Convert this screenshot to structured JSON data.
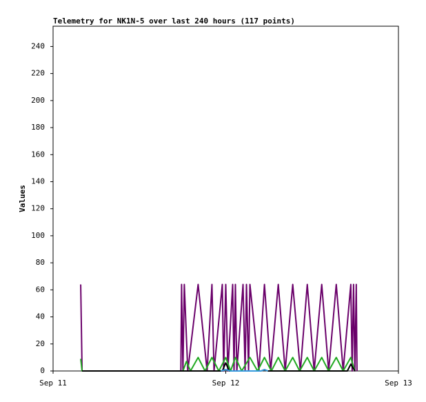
{
  "chart_data": {
    "type": "line",
    "title": "Telemetry for NK1N-5 over last 240 hours (117 points)",
    "ylabel": "Values",
    "xlim": [
      0,
      48
    ],
    "xticks": [
      {
        "value": 0,
        "label": "Sep 11"
      },
      {
        "value": 24,
        "label": "Sep 12"
      },
      {
        "value": 48,
        "label": "Sep 13"
      }
    ],
    "ylim": [
      0,
      255
    ],
    "yticks": [
      0,
      20,
      40,
      60,
      80,
      100,
      120,
      140,
      160,
      180,
      200,
      220,
      240
    ],
    "grid": false,
    "series": [
      {
        "color": "#6a006a",
        "x": [
          3.84,
          4.03,
          17.76,
          17.86,
          18.05,
          18.24,
          18.72,
          20.16,
          21.41,
          22.08,
          22.37,
          23.52,
          23.71,
          24.0,
          24.29,
          24.96,
          25.15,
          25.34,
          25.54,
          26.4,
          26.69,
          26.88,
          27.17,
          27.36,
          28.61,
          29.38,
          30.24,
          31.3,
          32.26,
          33.31,
          34.37,
          35.33,
          36.29,
          37.34,
          38.3,
          39.36,
          40.32,
          41.38,
          41.57,
          41.76,
          41.95,
          42.14,
          42.24
        ],
        "values": [
          64,
          0,
          0,
          64,
          0,
          64,
          0,
          64,
          0,
          64,
          0,
          64,
          0,
          64,
          0,
          64,
          0,
          64,
          0,
          64,
          0,
          64,
          0,
          64,
          0,
          64,
          0,
          64,
          0,
          64,
          0,
          64,
          0,
          64,
          0,
          64,
          0,
          64,
          0,
          64,
          0,
          64,
          0
        ]
      },
      {
        "color": "#22aa22",
        "x": [
          3.84,
          4.03,
          18.05,
          18.53,
          19.1,
          20.16,
          21.12,
          22.08,
          23.04,
          24.0,
          24.67,
          25.34,
          26.21,
          27.36,
          28.42,
          29.38,
          30.34,
          31.3,
          32.26,
          33.31,
          34.27,
          35.33,
          36.29,
          37.34,
          38.3,
          39.36,
          40.32,
          41.38,
          41.95
        ],
        "values": [
          9,
          0,
          0,
          7,
          0,
          10,
          0,
          10,
          0,
          10,
          0,
          10,
          0,
          10,
          0,
          10,
          0,
          10,
          0,
          10,
          0,
          10,
          0,
          10,
          0,
          10,
          0,
          10,
          0
        ]
      },
      {
        "color": "#000000",
        "x": [
          4.03,
          23.52,
          24.0,
          24.48,
          28.9,
          29.38,
          29.86,
          40.9,
          41.38,
          41.95
        ],
        "values": [
          0,
          0,
          6,
          0,
          0,
          1,
          0,
          0,
          5,
          0
        ]
      },
      {
        "color": "#3399dd",
        "x": [
          23.33,
          24.0,
          24.67,
          28.9,
          29.38,
          29.86
        ],
        "values": [
          0,
          1,
          0,
          0,
          1,
          0
        ]
      }
    ]
  }
}
